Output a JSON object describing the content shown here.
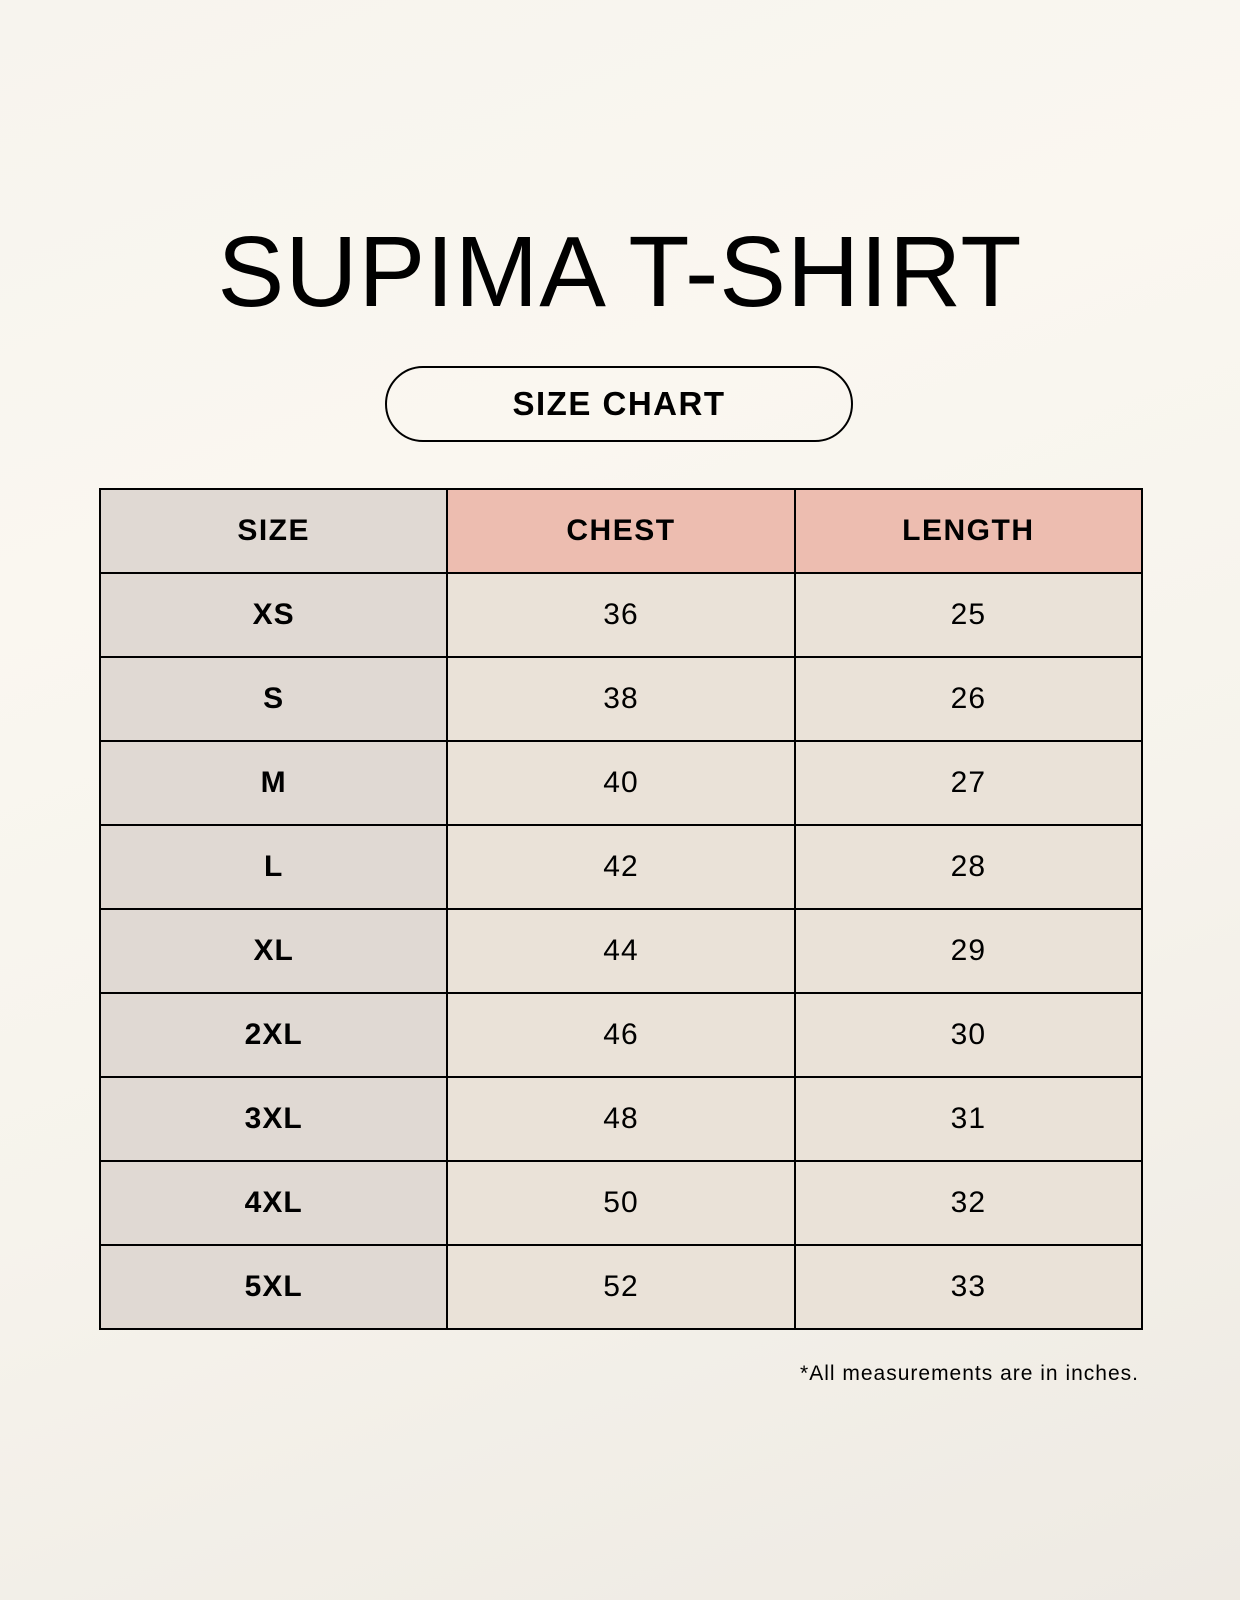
{
  "title": "SUPIMA T-SHIRT",
  "subtitle": "SIZE CHART",
  "colors": {
    "size_column": "#e0d9d3",
    "header_accent": "#edbdb0",
    "value_cells": "#eae2d8"
  },
  "table": {
    "headers": [
      "SIZE",
      "CHEST",
      "LENGTH"
    ],
    "rows": [
      [
        "XS",
        "36",
        "25"
      ],
      [
        "S",
        "38",
        "26"
      ],
      [
        "M",
        "40",
        "27"
      ],
      [
        "L",
        "42",
        "28"
      ],
      [
        "XL",
        "44",
        "29"
      ],
      [
        "2XL",
        "46",
        "30"
      ],
      [
        "3XL",
        "48",
        "31"
      ],
      [
        "4XL",
        "50",
        "32"
      ],
      [
        "5XL",
        "52",
        "33"
      ]
    ]
  },
  "footnote": "*All measurements are in inches."
}
